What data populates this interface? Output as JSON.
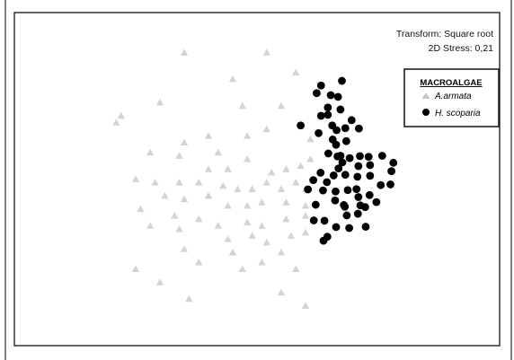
{
  "chart_data": {
    "type": "scatter",
    "title": "",
    "annotations": [
      "Transform: Square root",
      "2D Stress: 0,21"
    ],
    "xlabel": "",
    "ylabel": "",
    "xlim": [
      0,
      100
    ],
    "ylim": [
      0,
      100
    ],
    "grid": false,
    "legend": {
      "title": "MACROALGAE",
      "placement": "top-right",
      "entries": [
        {
          "label": "A.armata",
          "marker": "triangle",
          "color": "#c9c4c0"
        },
        {
          "label": "H. scoparia",
          "marker": "circle",
          "color": "#000000"
        }
      ]
    },
    "series": [
      {
        "name": "A.armata",
        "marker": "triangle",
        "color": "#c9c4c0",
        "points": [
          [
            35,
            88
          ],
          [
            52,
            88
          ],
          [
            45,
            80
          ],
          [
            58,
            82
          ],
          [
            47,
            72
          ],
          [
            55,
            72
          ],
          [
            30,
            73
          ],
          [
            22,
            69
          ],
          [
            21,
            67
          ],
          [
            40,
            63
          ],
          [
            48,
            63
          ],
          [
            52,
            65
          ],
          [
            35,
            61
          ],
          [
            34,
            57
          ],
          [
            42,
            58
          ],
          [
            61,
            62
          ],
          [
            28,
            58
          ],
          [
            40,
            53
          ],
          [
            44,
            53
          ],
          [
            48,
            56
          ],
          [
            53,
            52
          ],
          [
            56,
            53
          ],
          [
            59,
            54
          ],
          [
            61,
            56
          ],
          [
            25,
            50
          ],
          [
            29,
            49
          ],
          [
            34,
            49
          ],
          [
            38,
            49
          ],
          [
            43,
            48
          ],
          [
            46,
            47
          ],
          [
            49,
            47
          ],
          [
            52,
            49
          ],
          [
            55,
            47
          ],
          [
            58,
            49
          ],
          [
            60,
            47
          ],
          [
            31,
            45
          ],
          [
            35,
            44
          ],
          [
            40,
            45
          ],
          [
            44,
            42
          ],
          [
            48,
            42
          ],
          [
            51,
            43
          ],
          [
            56,
            43
          ],
          [
            60,
            42
          ],
          [
            26,
            41
          ],
          [
            28,
            36
          ],
          [
            33,
            39
          ],
          [
            38,
            38
          ],
          [
            42,
            36
          ],
          [
            48,
            37
          ],
          [
            51,
            36
          ],
          [
            56,
            38
          ],
          [
            60,
            39
          ],
          [
            34,
            35
          ],
          [
            44,
            32
          ],
          [
            49,
            33
          ],
          [
            52,
            31
          ],
          [
            57,
            33
          ],
          [
            60,
            34
          ],
          [
            35,
            29
          ],
          [
            45,
            28
          ],
          [
            55,
            28
          ],
          [
            51,
            25
          ],
          [
            38,
            25
          ],
          [
            47,
            23
          ],
          [
            58,
            23
          ],
          [
            25,
            23
          ],
          [
            30,
            19
          ],
          [
            55,
            16
          ],
          [
            36,
            14
          ],
          [
            60,
            12
          ]
        ]
      },
      {
        "name": "H. scoparia",
        "marker": "circle",
        "color": "#000000",
        "points": [
          [
            67.5,
            79.5
          ],
          [
            62.3,
            75.8
          ],
          [
            65.2,
            75.2
          ],
          [
            66.7,
            74.7
          ],
          [
            64.6,
            71.5
          ],
          [
            67.2,
            70.9
          ],
          [
            63.2,
            69.0
          ],
          [
            64.6,
            69.3
          ],
          [
            69.5,
            67.7
          ],
          [
            65.5,
            66.1
          ],
          [
            68.2,
            65.3
          ],
          [
            66.4,
            64.7
          ],
          [
            71.0,
            65.2
          ],
          [
            65.6,
            61.9
          ],
          [
            68.4,
            61.4
          ],
          [
            66.3,
            60.3
          ],
          [
            64.7,
            57.7
          ],
          [
            71.2,
            56.9
          ],
          [
            69.1,
            56.3
          ],
          [
            67.6,
            55.0
          ],
          [
            73.0,
            56.7
          ],
          [
            75.8,
            57.0
          ],
          [
            66.8,
            53.2
          ],
          [
            70.9,
            53.9
          ],
          [
            73.3,
            54.2
          ],
          [
            63.1,
            51.9
          ],
          [
            65.8,
            51.1
          ],
          [
            68.2,
            51.3
          ],
          [
            70.7,
            50.7
          ],
          [
            73.3,
            51.0
          ],
          [
            77.7,
            52.4
          ],
          [
            61.6,
            49.7
          ],
          [
            64.4,
            49.1
          ],
          [
            66.2,
            46.3
          ],
          [
            68.7,
            46.7
          ],
          [
            70.5,
            47.0
          ],
          [
            75.5,
            48.2
          ],
          [
            77.5,
            48.4
          ],
          [
            60.5,
            46.9
          ],
          [
            63.6,
            46.6
          ],
          [
            66.1,
            43.6
          ],
          [
            70.9,
            44.6
          ],
          [
            73.2,
            45.2
          ],
          [
            62.1,
            42.3
          ],
          [
            67.9,
            42.2
          ],
          [
            72.3,
            41.6
          ],
          [
            74.6,
            43.1
          ],
          [
            68.5,
            39.1
          ],
          [
            70.8,
            39.6
          ],
          [
            63.9,
            37.5
          ],
          [
            66.3,
            35.6
          ],
          [
            69.0,
            35.3
          ],
          [
            72.4,
            35.7
          ],
          [
            64.5,
            32.7
          ],
          [
            63.7,
            31.5
          ],
          [
            61.7,
            37.6
          ],
          [
            68.1,
            41.7
          ],
          [
            71.3,
            42.1
          ],
          [
            78.1,
            54.9
          ],
          [
            62.7,
            63.8
          ],
          [
            59.0,
            66.1
          ],
          [
            66.6,
            56.8
          ],
          [
            63.2,
            78.1
          ],
          [
            67.2,
            57.0
          ]
        ]
      }
    ]
  }
}
